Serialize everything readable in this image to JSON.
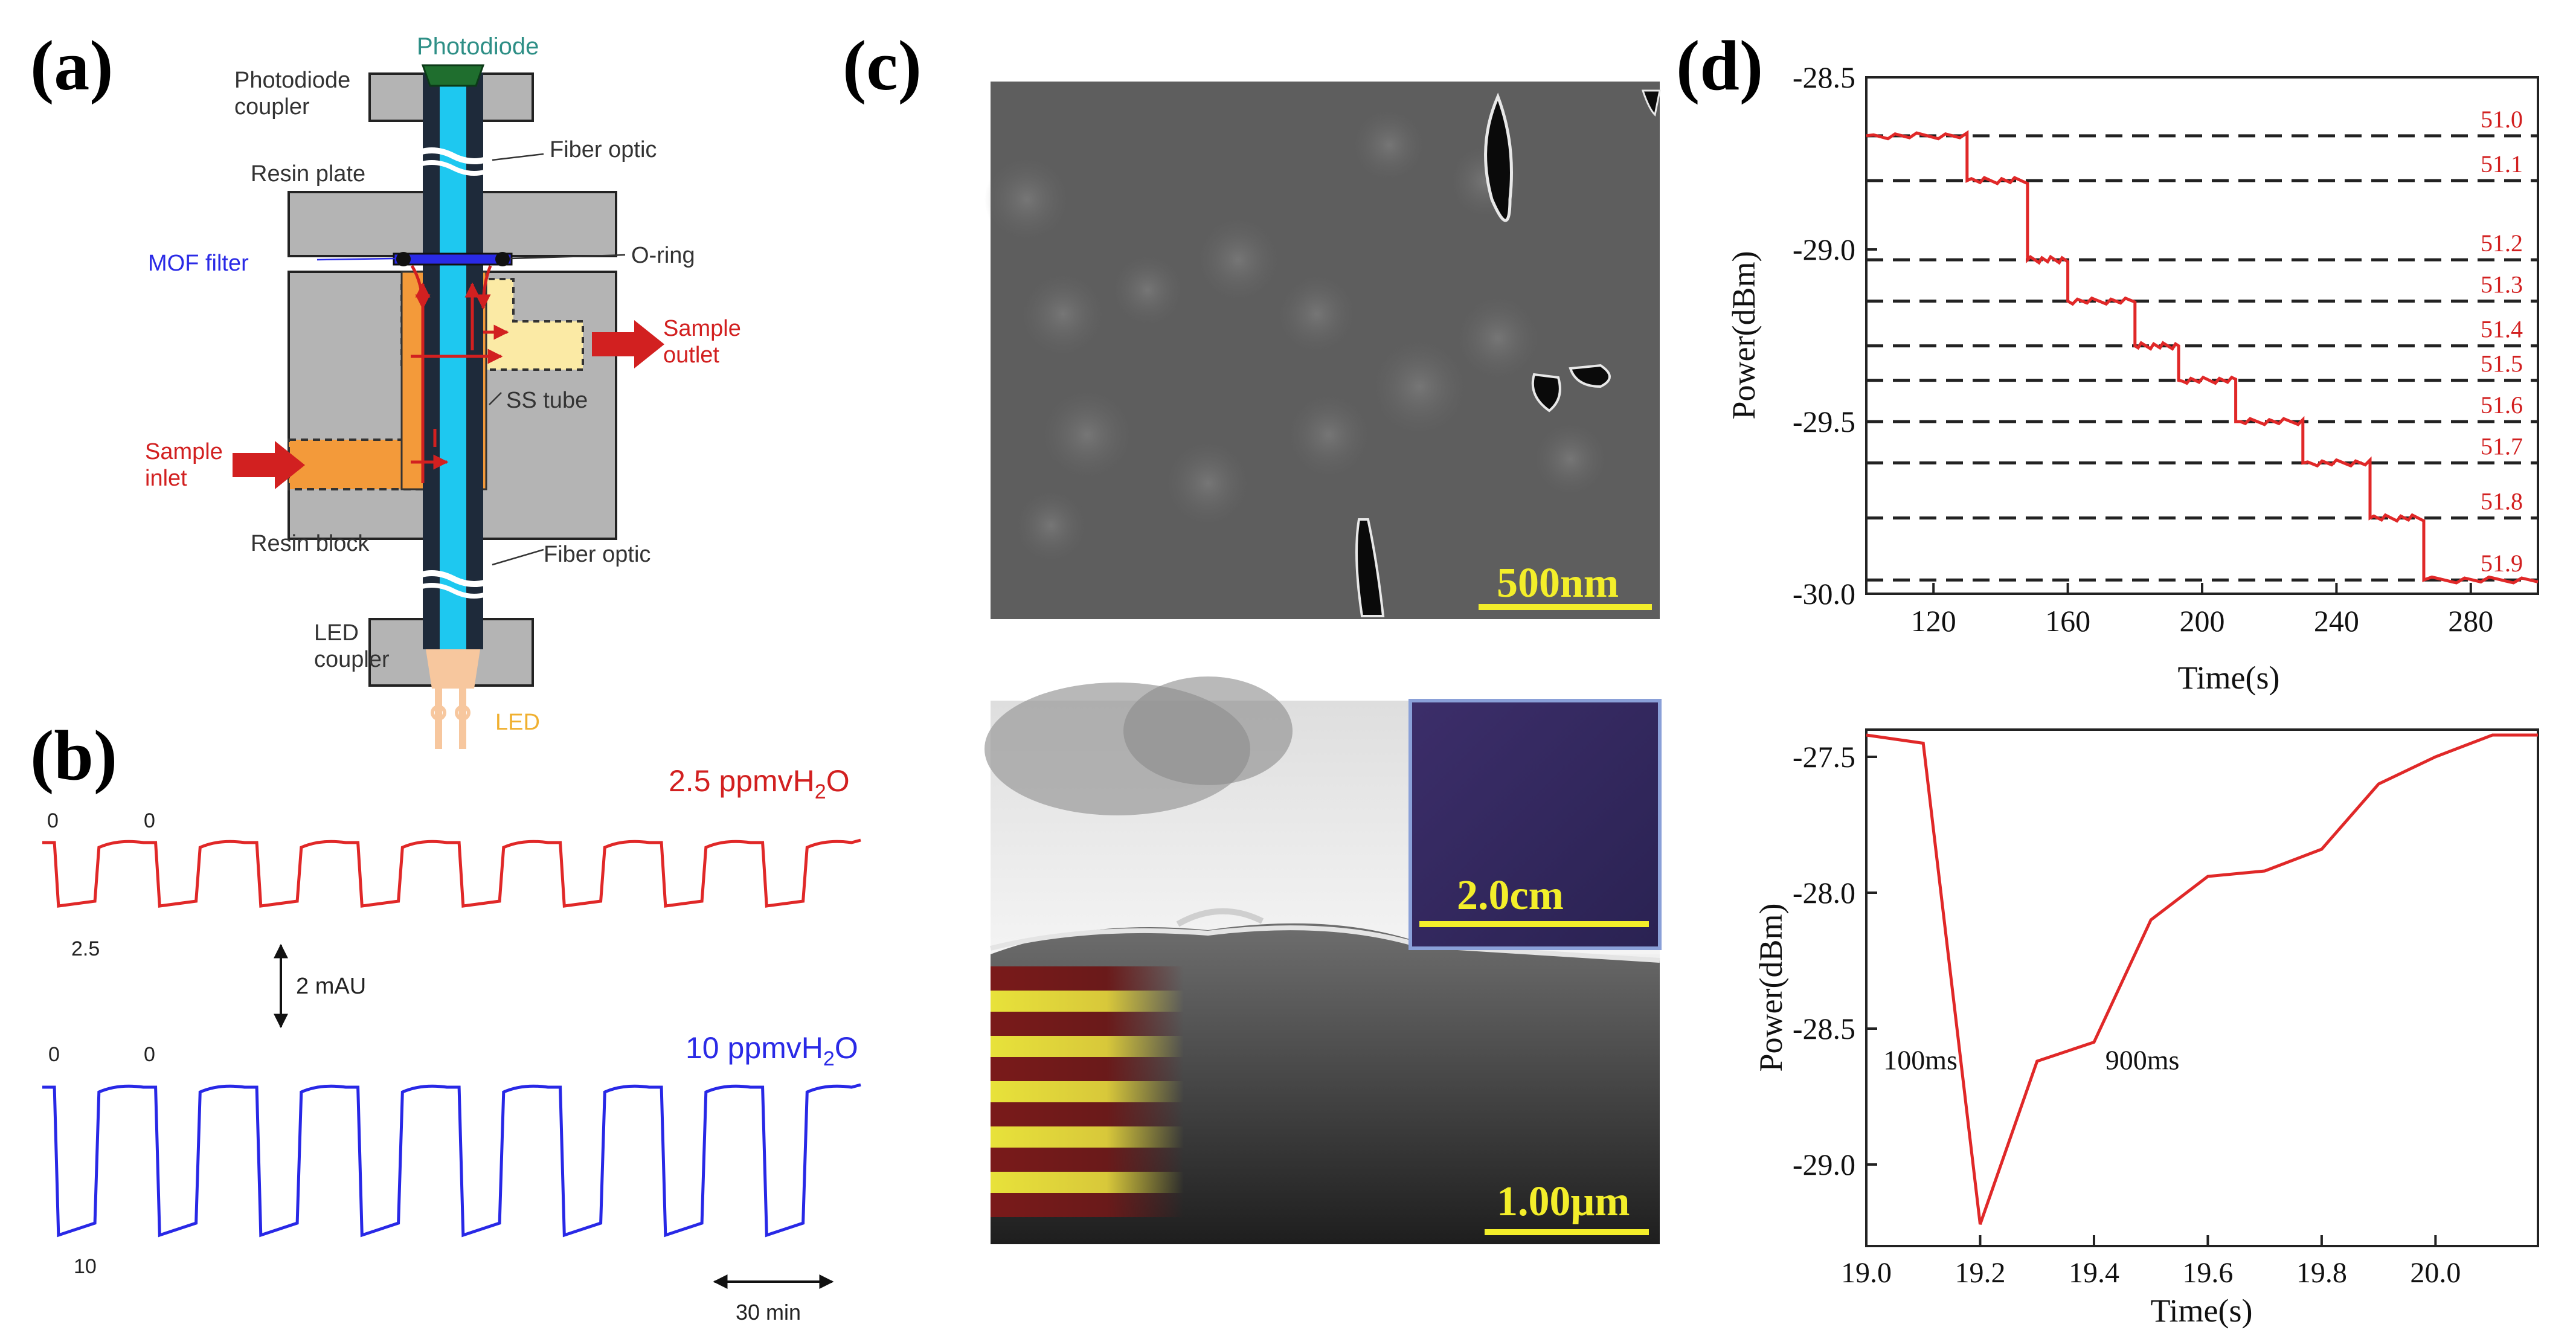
{
  "panel_labels": {
    "a": "(a)",
    "b": "(b)",
    "c": "(c)",
    "d": "(d)"
  },
  "colors": {
    "red": "#d22020",
    "blue": "#2a2ae6",
    "core": "#1ec8f0",
    "fiber": "#1e2a3a",
    "block": "#b4b4b4",
    "orange": "#f39a3a",
    "yellow": "#fbeaa5",
    "teal": "#2e8f86",
    "led_label": "#f0b030",
    "curve_red": "#e02828",
    "curve_blue": "#2828e6"
  },
  "diagram": {
    "labels": {
      "photodiode": "Photodiode",
      "photodiode_coupler": "Photodiode\ncoupler",
      "fiber_optic_top": "Fiber optic",
      "resin_plate": "Resin plate",
      "mof_filter": "MOF filter",
      "o_ring": "O-ring",
      "sample_outlet": "Sample\noutlet",
      "ss_tube": "SS tube",
      "sample_inlet": "Sample\ninlet",
      "resin_block": "Resin block",
      "fiber_optic_bottom": "Fiber optic",
      "led_coupler": "LED\ncoupler",
      "led": "LED"
    }
  },
  "traces": {
    "top_label": "2.5 ppmvH2O",
    "top_zero_a": "0",
    "top_zero_b": "0",
    "top_low": "2.5",
    "scale_bar": "2 mAU",
    "bottom_label": "10 ppmvH2O",
    "bottom_zero_a": "0",
    "bottom_zero_b": "0",
    "bottom_low": "10",
    "time_bar": "30 min"
  },
  "micrographs": {
    "top_scale": "500nm",
    "bottom_scale": "1.00μm",
    "inset_scale": "2.0cm"
  },
  "chart_data": [
    {
      "type": "line",
      "xlabel": "Time(s)",
      "ylabel": "Power(dBm)",
      "xlim": [
        100,
        300
      ],
      "ylim": [
        -30.0,
        -28.5
      ],
      "xticks": [
        120,
        160,
        200,
        240,
        280
      ],
      "yticks": [
        -28.5,
        -29.0,
        -29.5,
        -30.0
      ],
      "ytick_labels": [
        "-28.5",
        "-29.0",
        "-29.5",
        "-30.0"
      ],
      "reference_lines": [
        {
          "label": "51.0",
          "y": -28.67
        },
        {
          "label": "51.1",
          "y": -28.8
        },
        {
          "label": "51.2",
          "y": -29.03
        },
        {
          "label": "51.3",
          "y": -29.15
        },
        {
          "label": "51.4",
          "y": -29.28
        },
        {
          "label": "51.5",
          "y": -29.38
        },
        {
          "label": "51.6",
          "y": -29.5
        },
        {
          "label": "51.7",
          "y": -29.62
        },
        {
          "label": "51.8",
          "y": -29.78
        },
        {
          "label": "51.9",
          "y": -29.96
        }
      ],
      "steps": [
        {
          "x_start": 100,
          "x_end": 130,
          "y": -28.67
        },
        {
          "x_start": 130,
          "x_end": 148,
          "y": -28.8
        },
        {
          "x_start": 148,
          "x_end": 160,
          "y": -29.03
        },
        {
          "x_start": 160,
          "x_end": 180,
          "y": -29.15
        },
        {
          "x_start": 180,
          "x_end": 193,
          "y": -29.28
        },
        {
          "x_start": 193,
          "x_end": 210,
          "y": -29.38
        },
        {
          "x_start": 210,
          "x_end": 230,
          "y": -29.5
        },
        {
          "x_start": 230,
          "x_end": 250,
          "y": -29.62
        },
        {
          "x_start": 250,
          "x_end": 266,
          "y": -29.78
        },
        {
          "x_start": 266,
          "x_end": 300,
          "y": -29.96
        }
      ]
    },
    {
      "type": "line",
      "xlabel": "Time(s)",
      "ylabel": "Power(dBm)",
      "xlim": [
        19.0,
        20.18
      ],
      "ylim": [
        -29.3,
        -27.4
      ],
      "xticks": [
        19.0,
        19.2,
        19.4,
        19.6,
        19.8,
        20.0
      ],
      "xtick_labels": [
        "19.0",
        "19.2",
        "19.4",
        "19.6",
        "19.8",
        "20.0"
      ],
      "yticks": [
        -27.5,
        -28.0,
        -28.5,
        -29.0
      ],
      "ytick_labels": [
        "-27.5",
        "-28.0",
        "-28.5",
        "-29.0"
      ],
      "x": [
        19.0,
        19.1,
        19.2,
        19.3,
        19.4,
        19.5,
        19.6,
        19.7,
        19.8,
        19.9,
        20.0,
        20.1,
        20.18
      ],
      "y": [
        -27.42,
        -27.45,
        -29.22,
        -28.62,
        -28.55,
        -28.1,
        -27.94,
        -27.92,
        -27.84,
        -27.6,
        -27.5,
        -27.42,
        -27.42
      ],
      "annotations": [
        {
          "text": "100ms",
          "x": 19.03,
          "y": -28.65
        },
        {
          "text": "900ms",
          "x": 19.42,
          "y": -28.65
        }
      ]
    }
  ]
}
